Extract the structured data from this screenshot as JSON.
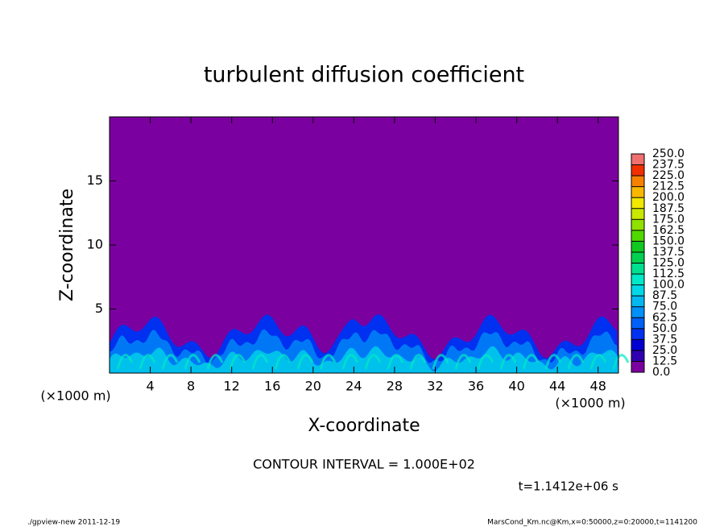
{
  "chart_data": {
    "type": "contour",
    "title": "turbulent diffusion coefficient",
    "xlabel": "X-coordinate",
    "ylabel": "Z-coordinate",
    "xunit": "(×1000 m)",
    "xlim": [
      0,
      50
    ],
    "xticks": [
      4,
      8,
      12,
      16,
      20,
      24,
      28,
      32,
      36,
      40,
      44,
      48
    ],
    "ylim": [
      0,
      20
    ],
    "yticks": [
      5,
      10,
      15
    ],
    "levels": [
      {
        "value": 0,
        "label": "0.0"
      },
      {
        "value": 12.5,
        "label": "12.5"
      },
      {
        "value": 25,
        "label": "25.0"
      },
      {
        "value": 37.5,
        "label": "37.5"
      },
      {
        "value": 50,
        "label": "50.0"
      },
      {
        "value": 62.5,
        "label": "62.5"
      },
      {
        "value": 75,
        "label": "75.0"
      },
      {
        "value": 87.5,
        "label": "87.5"
      },
      {
        "value": 100,
        "label": "100.0"
      },
      {
        "value": 112.5,
        "label": "112.5"
      },
      {
        "value": 125,
        "label": "125.0"
      },
      {
        "value": 137.5,
        "label": "137.5"
      },
      {
        "value": 150,
        "label": "150.0"
      },
      {
        "value": 162.5,
        "label": "162.5"
      },
      {
        "value": 175,
        "label": "175.0"
      },
      {
        "value": 187.5,
        "label": "187.5"
      },
      {
        "value": 200,
        "label": "200.0"
      },
      {
        "value": 212.5,
        "label": "212.5"
      },
      {
        "value": 225,
        "label": "225.0"
      },
      {
        "value": 237.5,
        "label": "237.5"
      },
      {
        "value": 250,
        "label": "250.0"
      }
    ],
    "colors": [
      "#7b00a0",
      "#3000b0",
      "#0000d0",
      "#0030f0",
      "#0060f8",
      "#0090f8",
      "#00b8f0",
      "#00d8e8",
      "#00e8c8",
      "#00e090",
      "#00d050",
      "#10c820",
      "#50d800",
      "#90e000",
      "#c8e800",
      "#f0e800",
      "#f8b800",
      "#f88000",
      "#f03000",
      "#f07070"
    ],
    "contour_interval": "CONTOUR INTERVAL = 1.000E+02",
    "time_label": "t=1.1412e+06 s",
    "footer_left": "./gpview-new  2011-12-19",
    "footer_right": "MarsCond_Km.nc@Km,x=0:50000,z=0:20000,t=1141200"
  }
}
